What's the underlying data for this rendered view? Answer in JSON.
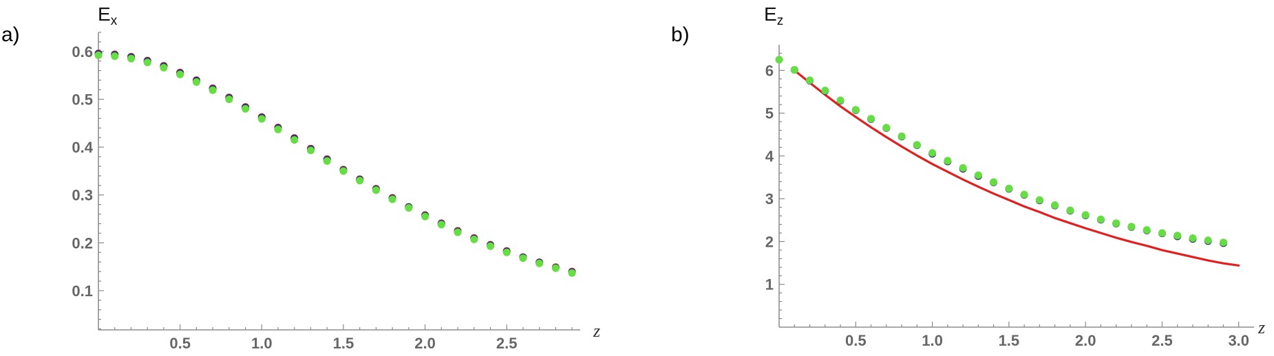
{
  "chart_data": [
    {
      "panel_label": "a)",
      "type": "scatter",
      "ylabel": "E",
      "ylabel_sub": "x",
      "xlabel": "z",
      "xlim": [
        0,
        2.95
      ],
      "ylim": [
        0.018,
        0.64
      ],
      "x_ticks": [
        0.5,
        1.0,
        1.5,
        2.0,
        2.5
      ],
      "x_tick_labels": [
        "0.5",
        "1.0",
        "1.5",
        "2.0",
        "2.5"
      ],
      "y_ticks": [
        0.1,
        0.2,
        0.3,
        0.4,
        0.5,
        0.6
      ],
      "y_tick_labels": [
        "0.1",
        "0.2",
        "0.3",
        "0.4",
        "0.5",
        "0.6"
      ],
      "series": [
        {
          "color": "#c43030",
          "style": "points",
          "x": [
            0.0,
            0.1,
            0.2,
            0.3,
            0.4,
            0.5,
            0.6,
            0.7,
            0.8,
            0.9,
            1.0,
            1.1,
            1.2,
            1.3,
            1.4,
            1.5,
            1.6,
            1.7,
            1.8,
            1.9,
            2.0,
            2.1,
            2.2,
            2.3,
            2.4,
            2.5,
            2.6,
            2.7,
            2.8,
            2.9
          ],
          "y": [
            0.596,
            0.594,
            0.589,
            0.581,
            0.57,
            0.556,
            0.54,
            0.523,
            0.504,
            0.484,
            0.463,
            0.441,
            0.419,
            0.397,
            0.375,
            0.353,
            0.333,
            0.313,
            0.294,
            0.275,
            0.258,
            0.241,
            0.225,
            0.21,
            0.196,
            0.183,
            0.17,
            0.159,
            0.149,
            0.14
          ]
        },
        {
          "color": "#3a2c6e",
          "style": "points",
          "x": [
            0.0,
            0.1,
            0.2,
            0.3,
            0.4,
            0.5,
            0.6,
            0.7,
            0.8,
            0.9,
            1.0,
            1.1,
            1.2,
            1.3,
            1.4,
            1.5,
            1.6,
            1.7,
            1.8,
            1.9,
            2.0,
            2.1,
            2.2,
            2.3,
            2.4,
            2.5,
            2.6,
            2.7,
            2.8,
            2.9
          ],
          "y": [
            0.595,
            0.593,
            0.588,
            0.58,
            0.569,
            0.555,
            0.539,
            0.522,
            0.503,
            0.483,
            0.462,
            0.44,
            0.418,
            0.396,
            0.374,
            0.352,
            0.332,
            0.312,
            0.293,
            0.275,
            0.257,
            0.24,
            0.224,
            0.209,
            0.195,
            0.182,
            0.17,
            0.159,
            0.148,
            0.139
          ]
        },
        {
          "color": "#66dd44",
          "style": "points",
          "x": [
            0.0,
            0.1,
            0.2,
            0.3,
            0.4,
            0.5,
            0.6,
            0.7,
            0.8,
            0.9,
            1.0,
            1.1,
            1.2,
            1.3,
            1.4,
            1.5,
            1.6,
            1.7,
            1.8,
            1.9,
            2.0,
            2.1,
            2.2,
            2.3,
            2.4,
            2.5,
            2.6,
            2.7,
            2.8,
            2.9
          ],
          "y": [
            0.592,
            0.59,
            0.585,
            0.577,
            0.566,
            0.552,
            0.536,
            0.519,
            0.5,
            0.48,
            0.459,
            0.437,
            0.415,
            0.393,
            0.371,
            0.35,
            0.33,
            0.31,
            0.291,
            0.273,
            0.255,
            0.238,
            0.222,
            0.207,
            0.193,
            0.18,
            0.168,
            0.157,
            0.147,
            0.137
          ]
        }
      ]
    },
    {
      "panel_label": "b)",
      "type": "scatter",
      "ylabel": "E",
      "ylabel_sub": "z",
      "xlabel": "z",
      "xlim": [
        0,
        3.1
      ],
      "ylim": [
        0,
        6.6
      ],
      "x_ticks": [
        0.5,
        1.0,
        1.5,
        2.0,
        2.5,
        3.0
      ],
      "x_tick_labels": [
        "0.5",
        "1.0",
        "1.5",
        "2.0",
        "2.5",
        "3.0"
      ],
      "y_ticks": [
        1,
        2,
        3,
        4,
        5,
        6
      ],
      "y_tick_labels": [
        "1",
        "2",
        "3",
        "4",
        "5",
        "6"
      ],
      "series": [
        {
          "color": "#e02020",
          "style": "line",
          "x": [
            0.1,
            0.2,
            0.3,
            0.4,
            0.5,
            0.6,
            0.7,
            0.8,
            0.9,
            1.0,
            1.1,
            1.2,
            1.3,
            1.4,
            1.5,
            1.6,
            1.7,
            1.8,
            1.9,
            2.0,
            2.1,
            2.2,
            2.3,
            2.4,
            2.5,
            2.6,
            2.7,
            2.8,
            2.9,
            3.0
          ],
          "y": [
            6.0,
            5.71,
            5.43,
            5.16,
            4.91,
            4.67,
            4.44,
            4.22,
            4.01,
            3.81,
            3.63,
            3.45,
            3.28,
            3.12,
            2.97,
            2.82,
            2.69,
            2.55,
            2.43,
            2.31,
            2.2,
            2.09,
            1.99,
            1.9,
            1.8,
            1.72,
            1.64,
            1.56,
            1.49,
            1.44
          ]
        },
        {
          "color": "#3a2c6e",
          "style": "points",
          "x": [
            0.1,
            0.2,
            0.3,
            0.4,
            0.5,
            0.6,
            0.7,
            0.8,
            0.9,
            1.0,
            1.1,
            1.2,
            1.3,
            1.4,
            1.5,
            1.6,
            1.7,
            1.8,
            1.9,
            2.0,
            2.1,
            2.2,
            2.3,
            2.4,
            2.5,
            2.6,
            2.7,
            2.8,
            2.9
          ],
          "y": [
            6.01,
            5.76,
            5.52,
            5.29,
            5.07,
            4.86,
            4.65,
            4.45,
            4.25,
            4.05,
            3.87,
            3.7,
            3.53,
            3.38,
            3.23,
            3.09,
            2.96,
            2.84,
            2.72,
            2.61,
            2.51,
            2.42,
            2.34,
            2.26,
            2.19,
            2.12,
            2.06,
            2.01,
            1.96
          ]
        },
        {
          "color": "#66dd44",
          "style": "points",
          "x": [
            0.0,
            0.1,
            0.2,
            0.3,
            0.4,
            0.5,
            0.6,
            0.7,
            0.8,
            0.9,
            1.0,
            1.1,
            1.2,
            1.3,
            1.4,
            1.5,
            1.6,
            1.7,
            1.8,
            1.9,
            2.0,
            2.1,
            2.2,
            2.3,
            2.4,
            2.5,
            2.6,
            2.7,
            2.8,
            2.9
          ],
          "y": [
            6.25,
            6.01,
            5.77,
            5.53,
            5.3,
            5.08,
            4.87,
            4.66,
            4.46,
            4.26,
            4.07,
            3.89,
            3.72,
            3.55,
            3.39,
            3.24,
            3.1,
            2.97,
            2.85,
            2.73,
            2.62,
            2.52,
            2.43,
            2.35,
            2.27,
            2.2,
            2.14,
            2.08,
            2.03,
            1.98
          ]
        }
      ]
    }
  ]
}
